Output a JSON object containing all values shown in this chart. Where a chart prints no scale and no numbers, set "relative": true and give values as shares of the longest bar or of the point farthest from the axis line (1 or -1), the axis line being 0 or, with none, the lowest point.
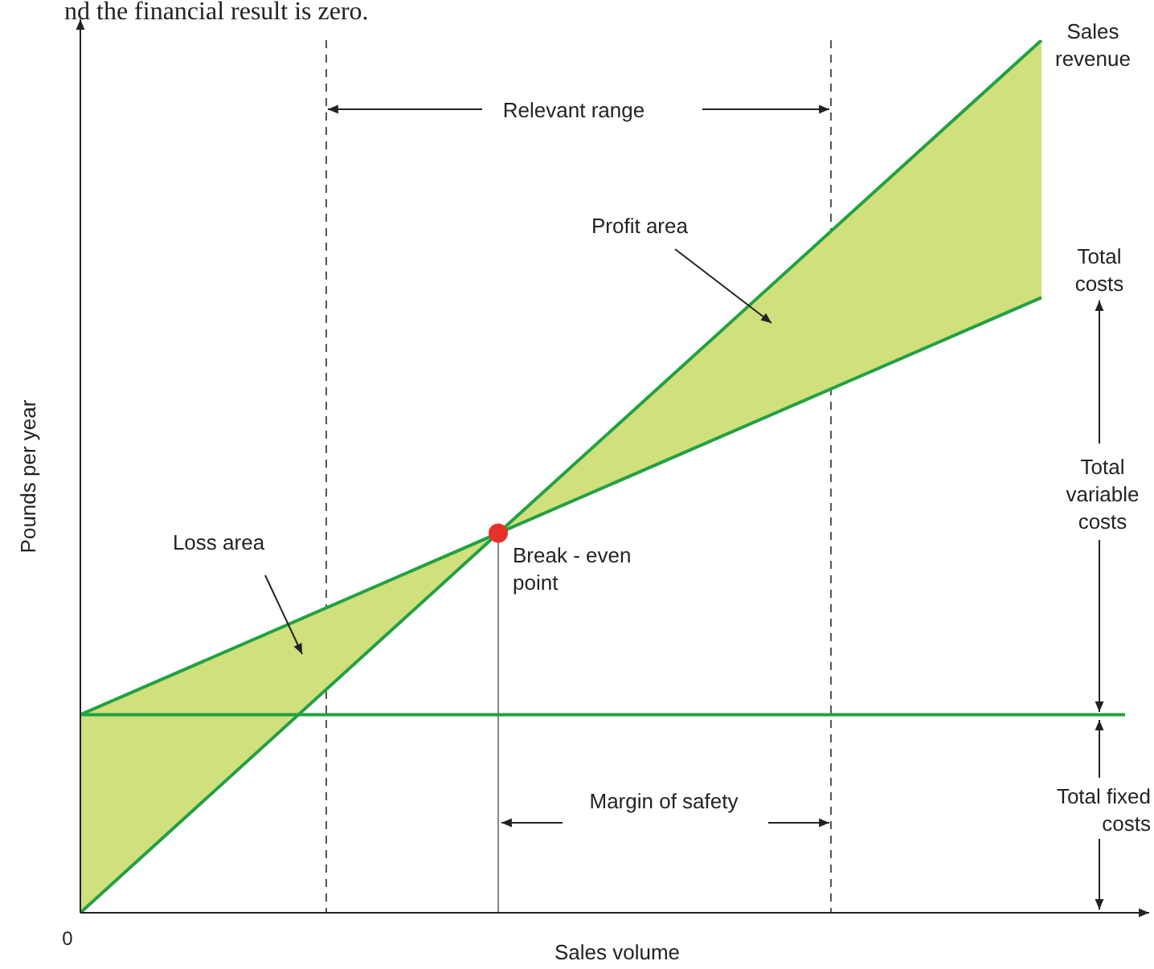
{
  "chart_data": {
    "type": "line",
    "relative": true,
    "xlabel": "Sales volume",
    "ylabel": "Pounds per year",
    "legend": false,
    "grid": false,
    "marker": "none",
    "line_style": "solid",
    "categories": [
      null,
      null,
      null,
      null,
      null,
      null,
      null,
      null,
      null,
      null,
      null,
      null,
      null,
      null,
      null,
      null,
      null,
      null,
      null,
      null,
      null,
      null,
      null,
      null,
      null,
      null
    ],
    "series": [
      {
        "name": "Sales revenue",
        "color": "#23a043",
        "values": [
          0,
          null,
          null,
          null,
          null,
          null,
          null,
          null,
          null,
          null,
          0.435,
          null,
          null,
          null,
          null,
          null,
          null,
          null,
          null,
          null,
          null,
          null,
          null,
          1,
          null,
          null
        ]
      },
      {
        "name": "Total costs",
        "color": "#23a043",
        "values": [
          0.227,
          null,
          null,
          null,
          null,
          null,
          null,
          null,
          null,
          null,
          0.435,
          null,
          null,
          null,
          null,
          null,
          null,
          null,
          null,
          null,
          null,
          null,
          null,
          0.705,
          null,
          null
        ],
        "lower": [
          0,
          null,
          null,
          null,
          null,
          null,
          null,
          null,
          null,
          null,
          0.435,
          null,
          null,
          null,
          null,
          null,
          null,
          null,
          null,
          null,
          null,
          null,
          null,
          0.705,
          null,
          null
        ],
        "upper": [
          0.227,
          null,
          null,
          null,
          null,
          null,
          null,
          null,
          null,
          null,
          0.435,
          null,
          null,
          null,
          null,
          null,
          null,
          null,
          null,
          null,
          null,
          null,
          null,
          1,
          null,
          null
        ]
      },
      {
        "color": "#23a043",
        "values": [
          0.227,
          null,
          null,
          null,
          null,
          null,
          null,
          null,
          null,
          null,
          null,
          null,
          null,
          null,
          null,
          null,
          null,
          null,
          null,
          null,
          null,
          null,
          null,
          null,
          null,
          0.227
        ]
      },
      {
        "color": "#e8312a",
        "marker": "circle",
        "values": [
          null,
          null,
          null,
          null,
          null,
          null,
          null,
          null,
          null,
          null,
          0.435,
          null,
          null,
          null,
          null,
          null,
          null,
          null,
          null,
          null,
          null,
          null,
          null,
          null,
          null,
          null
        ]
      }
    ],
    "annotations": [
      "nd the financial result is zero.",
      "Relevant range",
      "Profit area",
      "Loss area",
      "Margin of safety",
      "Total variable costs",
      "Total fixed costs",
      "Break - even point",
      "0"
    ]
  }
}
